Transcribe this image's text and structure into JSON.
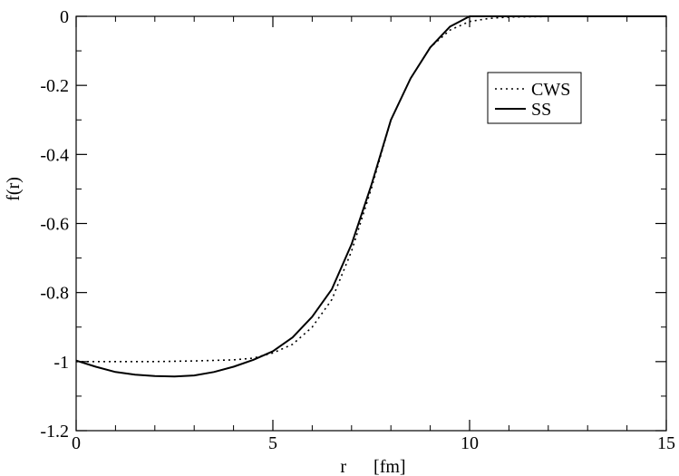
{
  "chart_data": {
    "type": "line",
    "title": "",
    "xlabel": "r      [fm]",
    "ylabel": "f(r)",
    "xlim": [
      0,
      15
    ],
    "ylim": [
      -1.2,
      0
    ],
    "x_ticks": [
      0,
      5,
      10,
      15
    ],
    "x_tick_labels": [
      "0",
      "5",
      "10",
      "15"
    ],
    "y_ticks": [
      0,
      -0.2,
      -0.4,
      -0.6,
      -0.8,
      -1,
      -1.2
    ],
    "y_tick_labels": [
      "0",
      "-0.2",
      "-0.4",
      "-0.6",
      "-0.8",
      "-1",
      "-1.2"
    ],
    "grid": false,
    "legend_position": "top-right",
    "series": [
      {
        "name": "CWS",
        "style": "dotted",
        "color": "#000000",
        "x": [
          0,
          1,
          2,
          3,
          4,
          4.5,
          5,
          5.5,
          6,
          6.5,
          7,
          7.5,
          8,
          8.5,
          9,
          9.5,
          10,
          10.5,
          11,
          12,
          13,
          14,
          15
        ],
        "y": [
          -1.0,
          -1.0,
          -1.0,
          -0.998,
          -0.995,
          -0.99,
          -0.975,
          -0.95,
          -0.9,
          -0.82,
          -0.68,
          -0.5,
          -0.3,
          -0.18,
          -0.09,
          -0.04,
          -0.015,
          -0.006,
          -0.002,
          -0.0005,
          0,
          0,
          0
        ]
      },
      {
        "name": "SS",
        "style": "solid",
        "color": "#000000",
        "x": [
          0,
          0.5,
          1,
          1.5,
          2,
          2.5,
          3,
          3.5,
          4,
          4.5,
          5,
          5.5,
          6,
          6.5,
          7,
          7.5,
          8,
          8.5,
          9,
          9.5,
          10,
          10.5,
          11,
          12,
          13,
          14,
          15
        ],
        "y": [
          -0.997,
          -1.015,
          -1.03,
          -1.038,
          -1.042,
          -1.043,
          -1.04,
          -1.03,
          -1.015,
          -0.995,
          -0.97,
          -0.93,
          -0.87,
          -0.79,
          -0.66,
          -0.49,
          -0.3,
          -0.18,
          -0.09,
          -0.03,
          0,
          0,
          0,
          0,
          0,
          0,
          0
        ]
      }
    ]
  }
}
